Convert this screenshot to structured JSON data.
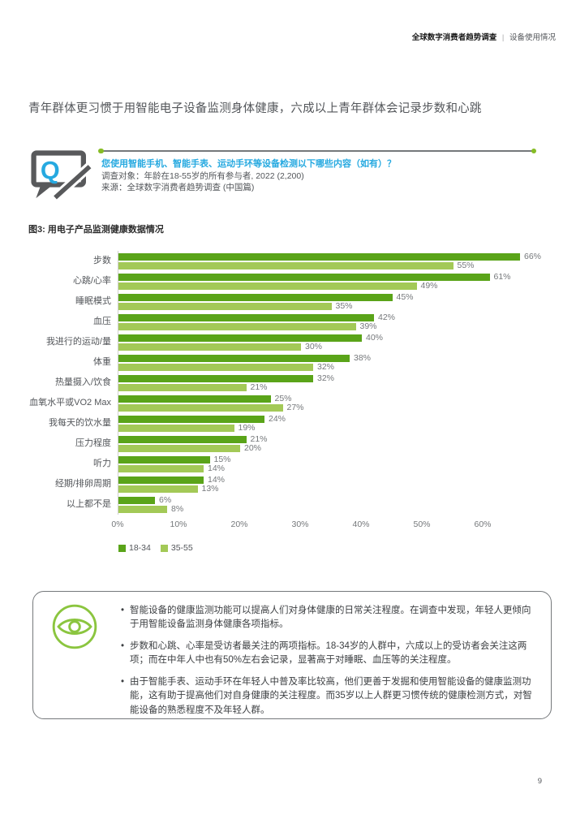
{
  "header": {
    "title_bold": "全球数字消费者趋势调查",
    "separator": "|",
    "section": "设备使用情况"
  },
  "page_title": "青年群体更习惯于用智能电子设备监测身体健康，六成以上青年群体会记录步数和心跳",
  "question": {
    "icon": "q-speech-bubble-icon",
    "text": "您使用智能手机、智能手表、运动手环等设备检测以下哪些内容（如有）？",
    "audience": "调查对象：年龄在18-55岁的所有参与者, 2022 (2,200)",
    "source": "来源：全球数字消费者趋势调查 (中国篇)"
  },
  "chart_title": "图3: 用电子产品监测健康数据情况",
  "chart_data": {
    "type": "bar",
    "orientation": "horizontal",
    "title": "图3: 用电子产品监测健康数据情况",
    "categories": [
      "步数",
      "心跳/心率",
      "睡眠模式",
      "血压",
      "我进行的运动/量",
      "体重",
      "热量摄入/饮食",
      "血氧水平或VO2 Max",
      "我每天的饮水量",
      "压力程度",
      "听力",
      "经期/排卵周期",
      "以上都不是"
    ],
    "series": [
      {
        "name": "18-34",
        "color": "#5aa419",
        "values": [
          66,
          61,
          45,
          42,
          40,
          38,
          32,
          25,
          24,
          21,
          15,
          14,
          6
        ]
      },
      {
        "name": "35-55",
        "color": "#a3c957",
        "values": [
          55,
          49,
          35,
          39,
          30,
          32,
          21,
          27,
          19,
          20,
          14,
          13,
          8
        ]
      }
    ],
    "value_suffix": "%",
    "x_ticks": [
      "0%",
      "10%",
      "20%",
      "30%",
      "40%",
      "50%",
      "60%"
    ],
    "xlim": [
      0,
      70
    ],
    "grid": false,
    "legend_position": "bottom"
  },
  "insights": {
    "icon": "eye-icon",
    "bullets": [
      "智能设备的健康监测功能可以提高人们对身体健康的日常关注程度。在调查中发现，年轻人更倾向于用智能设备监测身体健康各项指标。",
      "步数和心跳、心率是受访者最关注的两项指标。18-34岁的人群中，六成以上的受访者会关注这两项；而在中年人中也有50%左右会记录，显著高于对睡眠、血压等的关注程度。",
      "由于智能手表、运动手环在年轻人中普及率比较高，他们更善于发掘和使用智能设备的健康监测功能，这有助于提高他们对自身健康的关注程度。而35岁以上人群更习惯传统的健康检测方式，对智能设备的熟悉程度不及年轻人群。"
    ]
  },
  "page_number": "9",
  "colors": {
    "accent_green": "#86bc25",
    "bar_dark": "#5aa419",
    "bar_light": "#a3c957",
    "question_blue": "#26a9e0",
    "text_gray": "#53565a"
  }
}
